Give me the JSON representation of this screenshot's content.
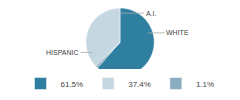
{
  "chart_data": {
    "type": "pie",
    "categories": [
      "61.5%",
      "37.4%",
      "1.1%"
    ],
    "values": [
      61.5,
      37.4,
      1.1
    ],
    "colors": [
      "#2e7fa0",
      "#c5d8e2",
      "#8aaec0"
    ],
    "annotations": [
      "HISPANIC",
      "WHITE",
      "A.I."
    ],
    "legend": "bottom"
  }
}
